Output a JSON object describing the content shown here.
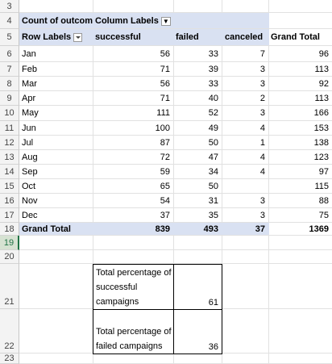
{
  "rows": [
    3,
    4,
    5,
    6,
    7,
    8,
    9,
    10,
    11,
    12,
    13,
    14,
    15,
    16,
    17,
    18,
    19,
    20,
    21,
    22,
    23
  ],
  "pivot": {
    "corner_label": "Count of outcome",
    "column_labels": "Column Labels",
    "row_labels": "Row Labels",
    "headers": [
      "successful",
      "failed",
      "canceled",
      "Grand Total"
    ],
    "data": [
      {
        "month": "Jan",
        "successful": "56",
        "failed": "33",
        "canceled": "7",
        "total": "96"
      },
      {
        "month": "Feb",
        "successful": "71",
        "failed": "39",
        "canceled": "3",
        "total": "113"
      },
      {
        "month": "Mar",
        "successful": "56",
        "failed": "33",
        "canceled": "3",
        "total": "92"
      },
      {
        "month": "Apr",
        "successful": "71",
        "failed": "40",
        "canceled": "2",
        "total": "113"
      },
      {
        "month": "May",
        "successful": "111",
        "failed": "52",
        "canceled": "3",
        "total": "166"
      },
      {
        "month": "Jun",
        "successful": "100",
        "failed": "49",
        "canceled": "4",
        "total": "153"
      },
      {
        "month": "Jul",
        "successful": "87",
        "failed": "50",
        "canceled": "1",
        "total": "138"
      },
      {
        "month": "Aug",
        "successful": "72",
        "failed": "47",
        "canceled": "4",
        "total": "123"
      },
      {
        "month": "Sep",
        "successful": "59",
        "failed": "34",
        "canceled": "4",
        "total": "97"
      },
      {
        "month": "Oct",
        "successful": "65",
        "failed": "50",
        "canceled": "",
        "total": "115"
      },
      {
        "month": "Nov",
        "successful": "54",
        "failed": "31",
        "canceled": "3",
        "total": "88"
      },
      {
        "month": "Dec",
        "successful": "37",
        "failed": "35",
        "canceled": "3",
        "total": "75"
      }
    ],
    "grand_total": {
      "label": "Grand Total",
      "successful": "839",
      "failed": "493",
      "canceled": "37",
      "total": "1369"
    }
  },
  "summary": {
    "success_label": "Total percentage of successful campaigns",
    "success_value": "61",
    "failed_label": "Total percentage of failed campaigns",
    "failed_value": "36"
  },
  "selected_row": 19
}
